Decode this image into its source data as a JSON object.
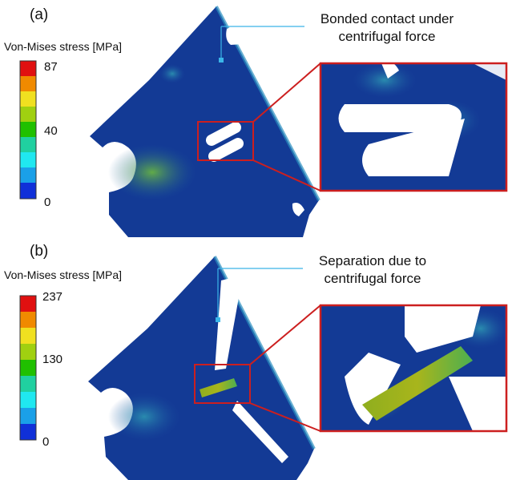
{
  "panels": [
    {
      "label": "(a)",
      "legend": {
        "title": "Von-Mises stress [MPa]",
        "ticks": [
          "87",
          "40",
          "0"
        ],
        "colors": [
          "#e01010",
          "#f08a00",
          "#f0e020",
          "#a0d010",
          "#20c000",
          "#20d0a0",
          "#20e8f0",
          "#1aa0e8",
          "#1030d8"
        ]
      },
      "annotation": [
        "Bonded contact under",
        "centrifugal force"
      ]
    },
    {
      "label": "(b)",
      "legend": {
        "title": "Von-Mises stress [MPa]",
        "ticks": [
          "237",
          "130",
          "0"
        ],
        "colors": [
          "#e01010",
          "#f08a00",
          "#f0e020",
          "#a0d010",
          "#20c000",
          "#20d0a0",
          "#20e8f0",
          "#1aa0e8",
          "#1030d8"
        ]
      },
      "annotation": [
        "Separation due to",
        "centrifugal force"
      ]
    }
  ],
  "colors": {
    "base_stress": "#133a95",
    "zoom_frame": "#cc1f1f",
    "leader_line": "#3bb5e8"
  }
}
